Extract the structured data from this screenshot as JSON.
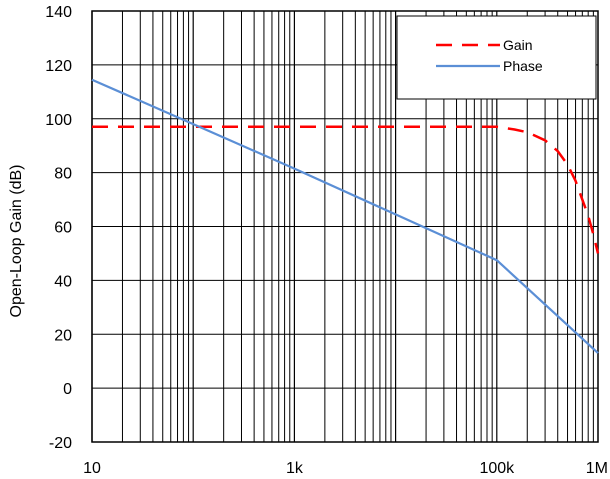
{
  "chart_data": {
    "type": "line",
    "title": "",
    "xlabel": "",
    "ylabel": "Open-Loop Gain (dB)",
    "x_scale": "log",
    "xlim": [
      10,
      1000000
    ],
    "ylim": [
      -20,
      140
    ],
    "grid": true,
    "legend_position": "top-right",
    "x_ticks": [
      {
        "value": 10,
        "label": "10"
      },
      {
        "value": 1000,
        "label": "1k"
      },
      {
        "value": 100000,
        "label": "100k"
      },
      {
        "value": 1000000,
        "label": "1M"
      }
    ],
    "y_ticks": [
      {
        "value": 140,
        "label": "140"
      },
      {
        "value": 120,
        "label": "120"
      },
      {
        "value": 100,
        "label": "100"
      },
      {
        "value": 80,
        "label": "80"
      },
      {
        "value": 60,
        "label": "60"
      },
      {
        "value": 40,
        "label": "40"
      },
      {
        "value": 20,
        "label": "20"
      },
      {
        "value": 0,
        "label": "0"
      },
      {
        "value": -20,
        "label": "-20"
      }
    ],
    "series": [
      {
        "name": "Gain",
        "color": "#ff0000",
        "style": "dashed",
        "x": [
          10,
          100,
          1000,
          10000,
          100000,
          150000,
          200000,
          300000,
          400000,
          500000,
          600000,
          700000,
          800000,
          900000,
          1000000
        ],
        "y": [
          97,
          97,
          97,
          97,
          97,
          96,
          95,
          92,
          88,
          83,
          77,
          70,
          64,
          57,
          50
        ]
      },
      {
        "name": "Phase",
        "color": "#5b8fd6",
        "style": "solid",
        "x": [
          10,
          100,
          1000,
          10000,
          100000,
          1000000
        ],
        "y": [
          114.5,
          98,
          81.5,
          64.5,
          47.5,
          13
        ]
      }
    ]
  }
}
